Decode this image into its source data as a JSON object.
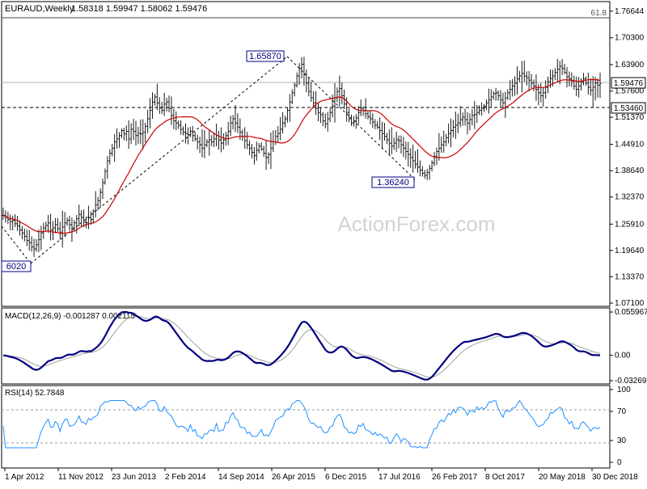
{
  "header": {
    "symbol_label": "EURAUD,Weekly",
    "ohlc": "1.58318 1.59947 1.58062 1.59476"
  },
  "watermark": "ActionForex.com",
  "colors": {
    "price_bars": "#1a1a1a",
    "moving_average": "#cc0000",
    "macd_line": "#000080",
    "macd_signal": "#a0a0a0",
    "rsi_line": "#1e90ff",
    "level_box_fill": "#ffffff",
    "level_box_border": "#000080",
    "grid_dotted": "#808080"
  },
  "chart_data": [
    {
      "type": "line",
      "name": "price",
      "style": "ohlc-bars",
      "title": "EURAUD,Weekly",
      "x_tick_labels": [
        "1 Apr 2012",
        "11 Nov 2012",
        "23 Jun 2013",
        "2 Feb 2014",
        "14 Sep 2014",
        "26 Apr 2015",
        "6 Dec 2015",
        "17 Jul 2016",
        "26 Feb 2017",
        "8 Oct 2017",
        "20 May 2018",
        "30 Dec 2018"
      ],
      "y_tick_labels": [
        "1.76644",
        "1.70300",
        "1.63900",
        "1.57600",
        "1.51370",
        "1.44910",
        "1.38640",
        "1.32370",
        "1.25910",
        "1.19640",
        "1.13370",
        "1.07100"
      ],
      "ylim": [
        1.071,
        1.766
      ],
      "current_price_label": "1.59476",
      "horizontal_level_label": "1.53460",
      "fib_label": "61.8",
      "annotations": [
        "1.65870",
        "1.36240",
        "6020"
      ],
      "swing_points": [
        {
          "x": "1 Apr 2012",
          "y": 1.2
        },
        {
          "x": "26 Apr 2015",
          "y": 1.6587
        },
        {
          "x": "17 Jul 2016",
          "y": 1.3624
        }
      ],
      "close_weekly": [
        1.28,
        1.275,
        1.27,
        1.265,
        1.268,
        1.26,
        1.255,
        1.245,
        1.238,
        1.23,
        1.22,
        1.215,
        1.205,
        1.2,
        1.21,
        1.222,
        1.238,
        1.25,
        1.256,
        1.262,
        1.245,
        1.25,
        1.258,
        1.248,
        1.24,
        1.252,
        1.262,
        1.268,
        1.258,
        1.25,
        1.262,
        1.272,
        1.282,
        1.275,
        1.264,
        1.262,
        1.274,
        1.27,
        1.29,
        1.305,
        1.315,
        1.335,
        1.358,
        1.385,
        1.41,
        1.428,
        1.44,
        1.455,
        1.462,
        1.47,
        1.482,
        1.474,
        1.48,
        1.462,
        1.485,
        1.48,
        1.47,
        1.475,
        1.474,
        1.478,
        1.492,
        1.51,
        1.53,
        1.55,
        1.562,
        1.548,
        1.536,
        1.53,
        1.545,
        1.55,
        1.535,
        1.518,
        1.505,
        1.5,
        1.495,
        1.485,
        1.478,
        1.475,
        1.472,
        1.48,
        1.47,
        1.462,
        1.455,
        1.448,
        1.44,
        1.448,
        1.455,
        1.46,
        1.455,
        1.462,
        1.47,
        1.46,
        1.452,
        1.46,
        1.47,
        1.48,
        1.5,
        1.51,
        1.5,
        1.49,
        1.478,
        1.468,
        1.458,
        1.448,
        1.44,
        1.43,
        1.422,
        1.435,
        1.445,
        1.438,
        1.428,
        1.418,
        1.425,
        1.44,
        1.455,
        1.468,
        1.475,
        1.485,
        1.5,
        1.51,
        1.53,
        1.55,
        1.572,
        1.59,
        1.612,
        1.63,
        1.64,
        1.615,
        1.595,
        1.575,
        1.56,
        1.548,
        1.535,
        1.525,
        1.52,
        1.505,
        1.498,
        1.51,
        1.525,
        1.54,
        1.56,
        1.575,
        1.582,
        1.565,
        1.545,
        1.525,
        1.51,
        1.5,
        1.505,
        1.512,
        1.525,
        1.535,
        1.53,
        1.522,
        1.515,
        1.51,
        1.502,
        1.495,
        1.49,
        1.482,
        1.475,
        1.468,
        1.46,
        1.452,
        1.445,
        1.452,
        1.46,
        1.458,
        1.448,
        1.44,
        1.432,
        1.425,
        1.418,
        1.41,
        1.402,
        1.395,
        1.388,
        1.38,
        1.375,
        1.382,
        1.392,
        1.405,
        1.42,
        1.432,
        1.44,
        1.448,
        1.455,
        1.465,
        1.475,
        1.482,
        1.49,
        1.495,
        1.5,
        1.508,
        1.514,
        1.508,
        1.5,
        1.508,
        1.518,
        1.52,
        1.525,
        1.53,
        1.535,
        1.54,
        1.548,
        1.555,
        1.562,
        1.57,
        1.572,
        1.565,
        1.555,
        1.548,
        1.56,
        1.572,
        1.58,
        1.588,
        1.595,
        1.605,
        1.612,
        1.618,
        1.612,
        1.608,
        1.602,
        1.595,
        1.588,
        1.58,
        1.572,
        1.565,
        1.572,
        1.585,
        1.598,
        1.606,
        1.612,
        1.62,
        1.628,
        1.635,
        1.63,
        1.62,
        1.61,
        1.605,
        1.6,
        1.588,
        1.58,
        1.588,
        1.598,
        1.605,
        1.595,
        1.585,
        1.578,
        1.585,
        1.595,
        1.59,
        1.594
      ]
    },
    {
      "type": "line",
      "name": "MACD",
      "title": "MACD(12,26,9) -0.001287 0.002115",
      "y_tick_labels": [
        "0.055967",
        "0.00",
        "-0.032692"
      ],
      "ylim": [
        -0.0327,
        0.056
      ]
    },
    {
      "type": "line",
      "name": "RSI",
      "title": "RSI(14) 52.7848",
      "y_tick_labels": [
        "100",
        "70",
        "30",
        "0"
      ],
      "ylim": [
        0,
        100
      ],
      "levels": [
        70,
        30
      ]
    }
  ]
}
